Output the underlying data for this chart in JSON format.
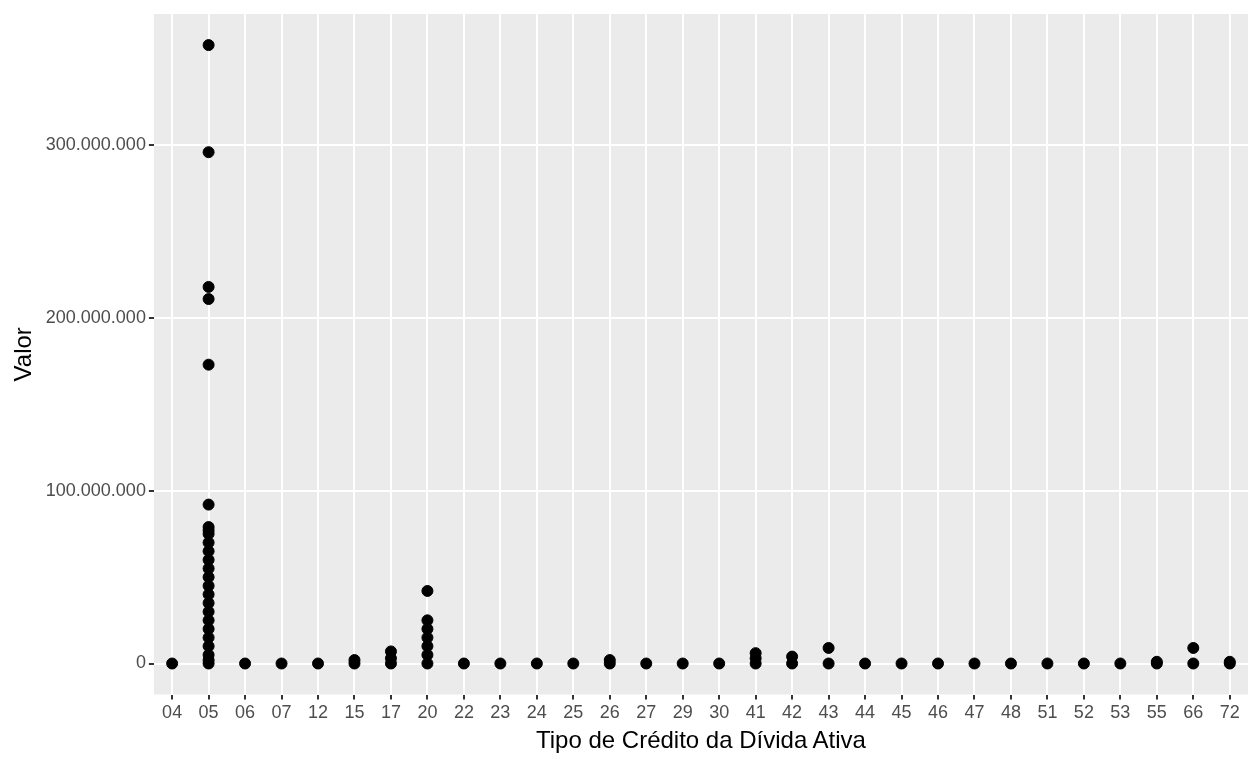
{
  "chart_data": {
    "type": "scatter",
    "xlabel": "Tipo de Crédito da Dívida Ativa",
    "ylabel": "Valor",
    "categories": [
      "04",
      "05",
      "06",
      "07",
      "12",
      "15",
      "17",
      "20",
      "22",
      "23",
      "24",
      "25",
      "26",
      "27",
      "29",
      "30",
      "41",
      "42",
      "43",
      "44",
      "45",
      "46",
      "47",
      "48",
      "51",
      "52",
      "53",
      "55",
      "66",
      "72"
    ],
    "ylim": [
      -18000000,
      376000000
    ],
    "yticks": [
      {
        "value": 0,
        "label": "0"
      },
      {
        "value": 100000000,
        "label": "100.000.000"
      },
      {
        "value": 200000000,
        "label": "200.000.000"
      },
      {
        "value": 300000000,
        "label": "300.000.000"
      }
    ],
    "grid": true,
    "legend": false,
    "marker": "circle",
    "series": [
      {
        "color": "#000000",
        "x": [
          "04",
          "05",
          "05",
          "05",
          "05",
          "05",
          "05",
          "05",
          "05",
          "05",
          "05",
          "05",
          "05",
          "05",
          "05",
          "05",
          "05",
          "05",
          "05",
          "05",
          "05",
          "05",
          "05",
          "05",
          "05",
          "05",
          "06",
          "07",
          "12",
          "15",
          "15",
          "17",
          "17",
          "17",
          "20",
          "20",
          "20",
          "20",
          "20",
          "20",
          "20",
          "22",
          "23",
          "24",
          "25",
          "26",
          "26",
          "27",
          "29",
          "30",
          "41",
          "41",
          "41",
          "42",
          "42",
          "43",
          "43",
          "44",
          "45",
          "46",
          "47",
          "48",
          "51",
          "52",
          "53",
          "55",
          "55",
          "66",
          "66",
          "72",
          "72"
        ],
        "values": [
          0,
          358000000,
          296000000,
          218000000,
          211000000,
          173000000,
          92000000,
          79000000,
          77000000,
          75000000,
          70000000,
          65000000,
          60000000,
          55000000,
          50000000,
          45000000,
          40000000,
          35000000,
          30000000,
          25000000,
          20000000,
          15000000,
          10000000,
          5000000,
          2000000,
          0,
          0,
          0,
          0,
          0,
          2000000,
          0,
          3000000,
          7000000,
          42000000,
          25000000,
          20000000,
          15000000,
          10000000,
          5000000,
          0,
          0,
          0,
          0,
          0,
          0,
          2000000,
          0,
          0,
          0,
          0,
          3000000,
          6000000,
          0,
          4000000,
          0,
          9000000,
          0,
          0,
          0,
          0,
          0,
          0,
          0,
          0,
          0,
          1000000,
          0,
          9000000,
          0,
          1000000
        ]
      }
    ]
  }
}
